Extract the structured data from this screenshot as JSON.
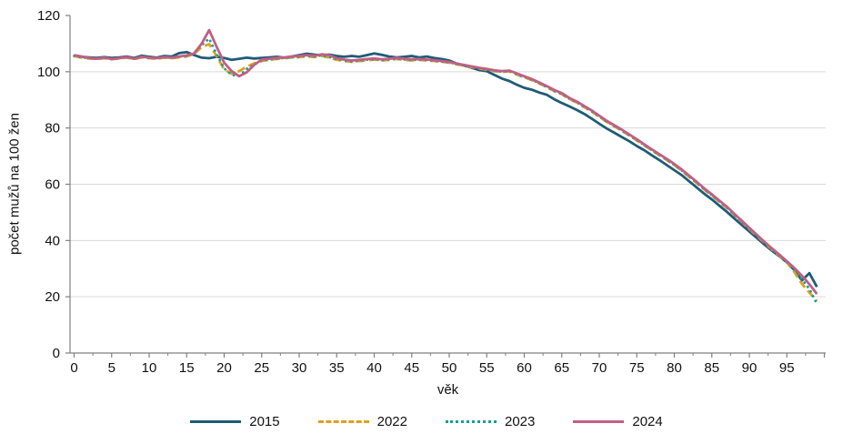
{
  "chart_data": {
    "type": "line",
    "title": "",
    "xlabel": "věk",
    "ylabel": "počet mužů na 100 žen",
    "xlim": [
      0,
      100
    ],
    "ylim": [
      0,
      120
    ],
    "x_ticks": [
      0,
      5,
      10,
      15,
      20,
      25,
      30,
      35,
      40,
      45,
      50,
      55,
      60,
      65,
      70,
      75,
      80,
      85,
      90,
      95
    ],
    "y_ticks": [
      0,
      20,
      40,
      60,
      80,
      100,
      120
    ],
    "y_gridlines": [
      20,
      40,
      60,
      80,
      100
    ],
    "grid": "horizontal",
    "legend_position": "bottom",
    "axis_color": "#808080",
    "grid_color": "#d9d9d9",
    "text_color": "#111111",
    "x": [
      0,
      1,
      2,
      3,
      4,
      5,
      6,
      7,
      8,
      9,
      10,
      11,
      12,
      13,
      14,
      15,
      16,
      17,
      18,
      19,
      20,
      21,
      22,
      23,
      24,
      25,
      26,
      27,
      28,
      29,
      30,
      31,
      32,
      33,
      34,
      35,
      36,
      37,
      38,
      39,
      40,
      41,
      42,
      43,
      44,
      45,
      46,
      47,
      48,
      49,
      50,
      51,
      52,
      53,
      54,
      55,
      56,
      57,
      58,
      59,
      60,
      61,
      62,
      63,
      64,
      65,
      66,
      67,
      68,
      69,
      70,
      71,
      72,
      73,
      74,
      75,
      76,
      77,
      78,
      79,
      80,
      81,
      82,
      83,
      84,
      85,
      86,
      87,
      88,
      89,
      90,
      91,
      92,
      93,
      94,
      95,
      96,
      97,
      98,
      99
    ],
    "series": [
      {
        "name": "2015",
        "color": "#1f5c77",
        "style": "solid",
        "values": [
          105.8,
          105.3,
          105.1,
          104.9,
          105.2,
          104.9,
          105.1,
          105.4,
          104.9,
          105.7,
          105.3,
          105.0,
          105.6,
          105.4,
          106.6,
          107.0,
          105.9,
          105.0,
          104.8,
          105.3,
          104.9,
          104.2,
          104.6,
          105.0,
          104.7,
          104.9,
          105.1,
          105.3,
          105.0,
          105.4,
          105.9,
          106.4,
          106.1,
          105.9,
          106.1,
          105.6,
          105.3,
          105.6,
          105.3,
          105.9,
          106.5,
          106.0,
          105.4,
          105.1,
          105.3,
          105.6,
          105.1,
          105.4,
          104.9,
          104.5,
          104.0,
          102.9,
          102.2,
          101.4,
          100.6,
          100.2,
          98.9,
          97.6,
          96.7,
          95.4,
          94.3,
          93.6,
          92.6,
          91.8,
          90.2,
          88.9,
          87.7,
          86.4,
          85.0,
          83.3,
          81.5,
          79.8,
          78.3,
          76.8,
          75.3,
          73.6,
          72.1,
          70.3,
          68.6,
          66.8,
          65.0,
          63.2,
          61.0,
          58.8,
          56.6,
          54.6,
          52.4,
          50.2,
          47.8,
          45.5,
          43.2,
          40.9,
          38.6,
          36.4,
          34.4,
          32.2,
          29.5,
          25.8,
          28.4,
          23.5
        ]
      },
      {
        "name": "2022",
        "color": "#d9a320",
        "style": "dashed",
        "values": [
          105.5,
          105.0,
          104.7,
          104.5,
          104.8,
          104.4,
          104.7,
          105.0,
          104.5,
          105.1,
          104.8,
          104.6,
          105.0,
          104.8,
          105.1,
          105.4,
          106.3,
          108.8,
          109.8,
          105.5,
          100.8,
          99.3,
          100.2,
          101.8,
          103.0,
          103.8,
          104.2,
          104.5,
          104.8,
          105.0,
          105.2,
          105.5,
          105.2,
          105.6,
          105.0,
          104.2,
          103.8,
          103.5,
          103.8,
          104.0,
          104.3,
          104.0,
          104.2,
          104.5,
          104.2,
          104.0,
          104.2,
          104.0,
          103.8,
          103.5,
          103.2,
          102.6,
          102.1,
          101.6,
          101.1,
          100.7,
          100.2,
          99.9,
          100.1,
          99.0,
          98.0,
          97.0,
          95.8,
          94.5,
          93.1,
          92.0,
          90.3,
          89.0,
          87.4,
          85.8,
          84.0,
          82.1,
          80.6,
          79.0,
          77.3,
          75.6,
          73.8,
          72.0,
          70.3,
          68.6,
          66.8,
          64.8,
          62.6,
          60.4,
          58.1,
          56.0,
          53.8,
          51.6,
          49.1,
          46.6,
          44.1,
          41.6,
          39.2,
          36.8,
          34.6,
          32.2,
          28.8,
          24.6,
          21.5,
          18.5
        ]
      },
      {
        "name": "2023",
        "color": "#189e98",
        "style": "dotted",
        "values": [
          105.6,
          105.1,
          104.8,
          104.6,
          104.9,
          104.5,
          104.8,
          105.1,
          104.6,
          105.2,
          104.9,
          104.7,
          105.1,
          104.9,
          105.3,
          105.6,
          106.8,
          109.5,
          111.8,
          106.2,
          101.2,
          98.8,
          98.5,
          101.0,
          102.6,
          104.0,
          104.3,
          104.6,
          104.9,
          105.1,
          105.3,
          105.6,
          105.4,
          105.8,
          105.2,
          104.5,
          104.0,
          103.6,
          103.9,
          104.2,
          104.4,
          104.1,
          104.3,
          104.6,
          104.3,
          104.1,
          104.3,
          104.1,
          103.9,
          103.6,
          103.3,
          102.7,
          102.2,
          101.7,
          101.2,
          100.8,
          100.3,
          100.0,
          100.2,
          99.1,
          98.1,
          97.1,
          95.9,
          94.6,
          93.2,
          92.1,
          90.4,
          89.1,
          87.5,
          85.9,
          84.1,
          82.2,
          80.7,
          79.1,
          77.4,
          75.7,
          73.9,
          72.1,
          70.4,
          68.7,
          66.9,
          64.9,
          62.7,
          60.5,
          58.2,
          56.1,
          53.9,
          51.7,
          49.2,
          46.7,
          44.2,
          41.7,
          39.3,
          36.9,
          34.7,
          32.3,
          29.8,
          26.2,
          22.8,
          17.5
        ]
      },
      {
        "name": "2024",
        "color": "#c05f86",
        "style": "solid",
        "values": [
          105.9,
          105.4,
          104.9,
          104.6,
          105.0,
          104.5,
          104.8,
          105.2,
          104.6,
          105.3,
          105.0,
          104.8,
          105.2,
          105.0,
          105.4,
          105.8,
          106.5,
          110.0,
          114.8,
          108.8,
          103.2,
          100.2,
          98.4,
          99.8,
          102.4,
          104.3,
          104.6,
          104.9,
          105.1,
          105.4,
          105.6,
          105.9,
          105.7,
          106.2,
          105.9,
          104.8,
          104.3,
          104.0,
          104.2,
          104.5,
          104.7,
          104.4,
          104.6,
          104.9,
          104.6,
          104.4,
          104.5,
          104.3,
          104.1,
          103.8,
          103.5,
          102.9,
          102.4,
          101.9,
          101.4,
          101.0,
          100.5,
          100.2,
          100.4,
          99.4,
          98.4,
          97.4,
          96.2,
          94.9,
          93.5,
          92.4,
          90.7,
          89.4,
          87.8,
          86.2,
          84.4,
          82.5,
          81.0,
          79.4,
          77.7,
          76.0,
          74.2,
          72.4,
          70.7,
          69.0,
          67.2,
          65.2,
          63.0,
          60.8,
          58.5,
          56.4,
          54.2,
          52.0,
          49.5,
          47.0,
          44.5,
          42.0,
          39.6,
          37.2,
          35.0,
          32.6,
          30.2,
          27.5,
          24.5,
          21.0
        ]
      }
    ]
  }
}
